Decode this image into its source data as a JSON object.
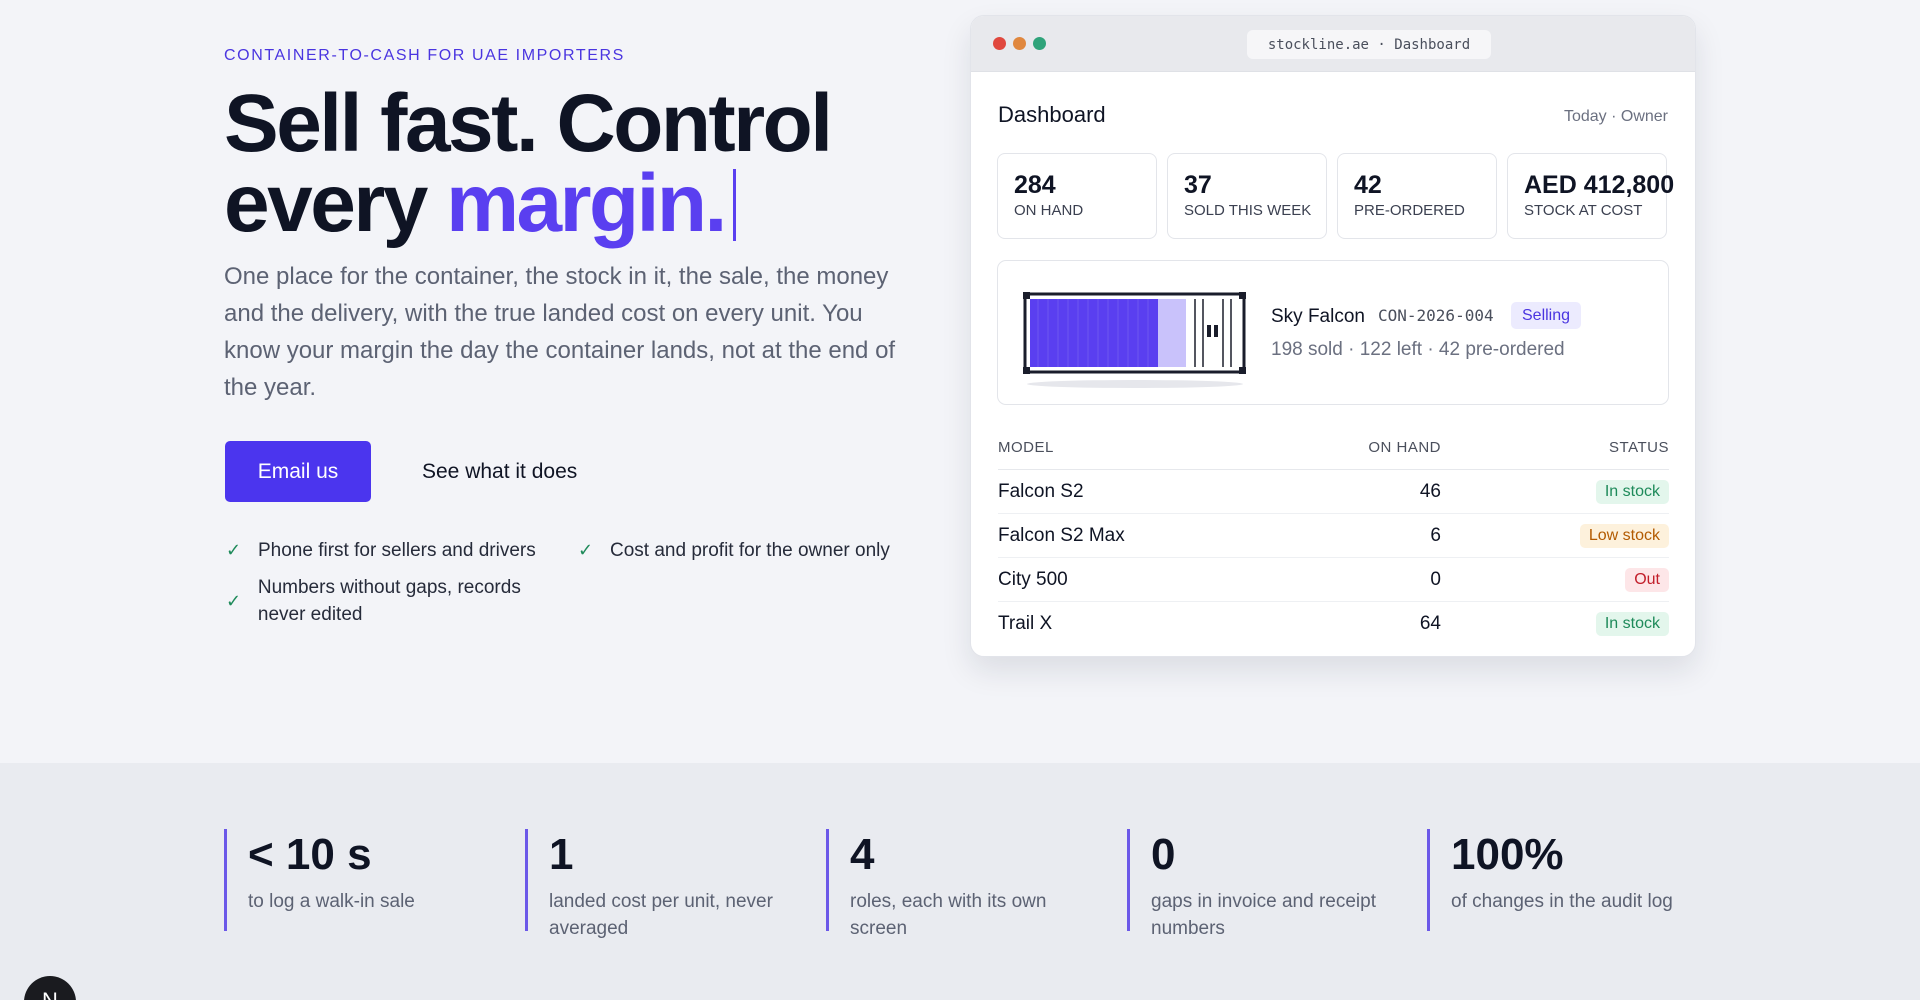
{
  "hero": {
    "eyebrow": "CONTAINER-TO-CASH FOR UAE IMPORTERS",
    "headline_line1": "Sell fast. Control",
    "headline_line2_plain": "every ",
    "headline_line2_accent": "margin.",
    "lede": "One place for the container, the stock in it, the sale, the money and the delivery, with the true landed cost on every unit. You know your margin the day the container lands, not at the end of the year.",
    "cta_primary": "Email us",
    "cta_secondary": "See what it does",
    "features": [
      "Phone first for sellers and drivers",
      "Cost and profit for the owner only",
      "Numbers without gaps, records never edited"
    ]
  },
  "browser": {
    "url": "stockline.ae · Dashboard",
    "title": "Dashboard",
    "meta": "Today · Owner",
    "stats": [
      {
        "value": "284",
        "label": "ON HAND"
      },
      {
        "value": "37",
        "label": "SOLD THIS WEEK"
      },
      {
        "value": "42",
        "label": "PRE-ORDERED"
      },
      {
        "value": "AED 412,800",
        "label": "STOCK AT COST"
      }
    ],
    "container": {
      "name": "Sky Falcon",
      "code": "CON-2026-004",
      "status": "Selling",
      "summary": "198 sold · 122 left · 42 pre-ordered",
      "sold_fraction": 0.6
    },
    "table": {
      "headers": [
        "MODEL",
        "ON HAND",
        "STATUS"
      ],
      "rows": [
        {
          "model": "Falcon S2",
          "on_hand": "46",
          "status": "In stock",
          "status_color": "#1e8a5a",
          "status_bg": "#e3f6ec"
        },
        {
          "model": "Falcon S2 Max",
          "on_hand": "6",
          "status": "Low stock",
          "status_color": "#b25a00",
          "status_bg": "#fdf1dc"
        },
        {
          "model": "City 500",
          "on_hand": "0",
          "status": "Out",
          "status_color": "#c21e2a",
          "status_bg": "#fde6e8"
        },
        {
          "model": "Trail X",
          "on_hand": "64",
          "status": "In stock",
          "status_color": "#1e8a5a",
          "status_bg": "#e3f6ec"
        }
      ]
    }
  },
  "band": {
    "stats": [
      {
        "value": "< 10 s",
        "label": "to log a walk-in sale"
      },
      {
        "value": "1",
        "label": "landed cost per unit, never averaged"
      },
      {
        "value": "4",
        "label": "roles, each with its own screen"
      },
      {
        "value": "0",
        "label": "gaps in invoice and receipt numbers"
      },
      {
        "value": "100%",
        "label": "of changes in the audit log"
      }
    ]
  },
  "fab": {
    "label": "N"
  },
  "colors": {
    "accent": "#4b35ee",
    "text": "#0f1424",
    "muted": "#5c6273",
    "success": "#1e8a5a"
  }
}
